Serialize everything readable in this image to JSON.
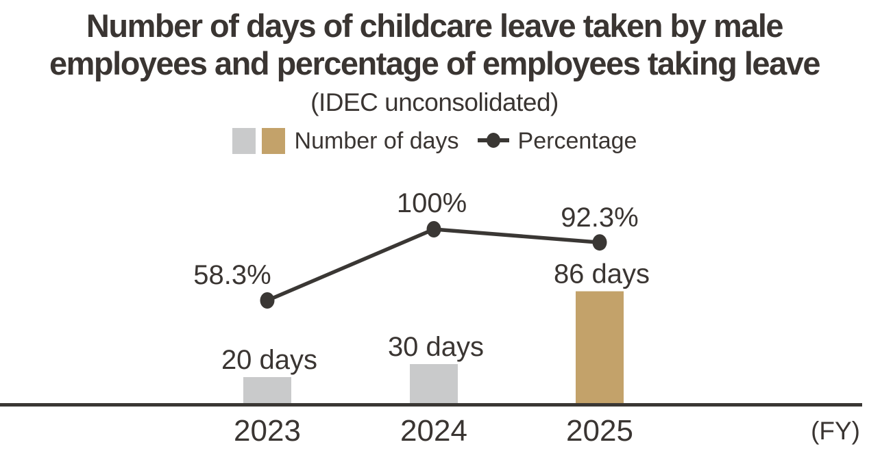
{
  "title": {
    "lines": [
      "Number of days of childcare leave taken by male",
      "employees and percentage of employees taking leave"
    ],
    "subtitle": "(IDEC unconsolidated)"
  },
  "legend": {
    "bars_label": "Number of days",
    "line_label": "Percentage"
  },
  "colors": {
    "gray_bar": "#C9CACB",
    "gold_bar": "#C3A26A",
    "ink": "#3A3532",
    "line": "#3A3734"
  },
  "chart_data": {
    "type": "combo-bar-line",
    "title": "Number of days of childcare leave taken by male employees and percentage of employees taking leave",
    "subtitle": "(IDEC unconsolidated)",
    "categories": [
      "2023",
      "2024",
      "2025"
    ],
    "x_axis_note": "(FY)",
    "grid": false,
    "value_axes_visible": false,
    "legend_position": "top-center",
    "series": [
      {
        "name": "Number of days",
        "type": "bar",
        "unit": "days",
        "values": [
          20,
          30,
          86
        ],
        "labels": [
          "20 days",
          "30 days",
          "86 days"
        ],
        "bar_colors": [
          "#C9CACB",
          "#C9CACB",
          "#C3A26A"
        ]
      },
      {
        "name": "Percentage",
        "type": "line",
        "unit": "%",
        "values": [
          58.3,
          100,
          92.3
        ],
        "labels": [
          "58.3%",
          "100%",
          "92.3%"
        ],
        "color": "#3A3734"
      }
    ]
  }
}
